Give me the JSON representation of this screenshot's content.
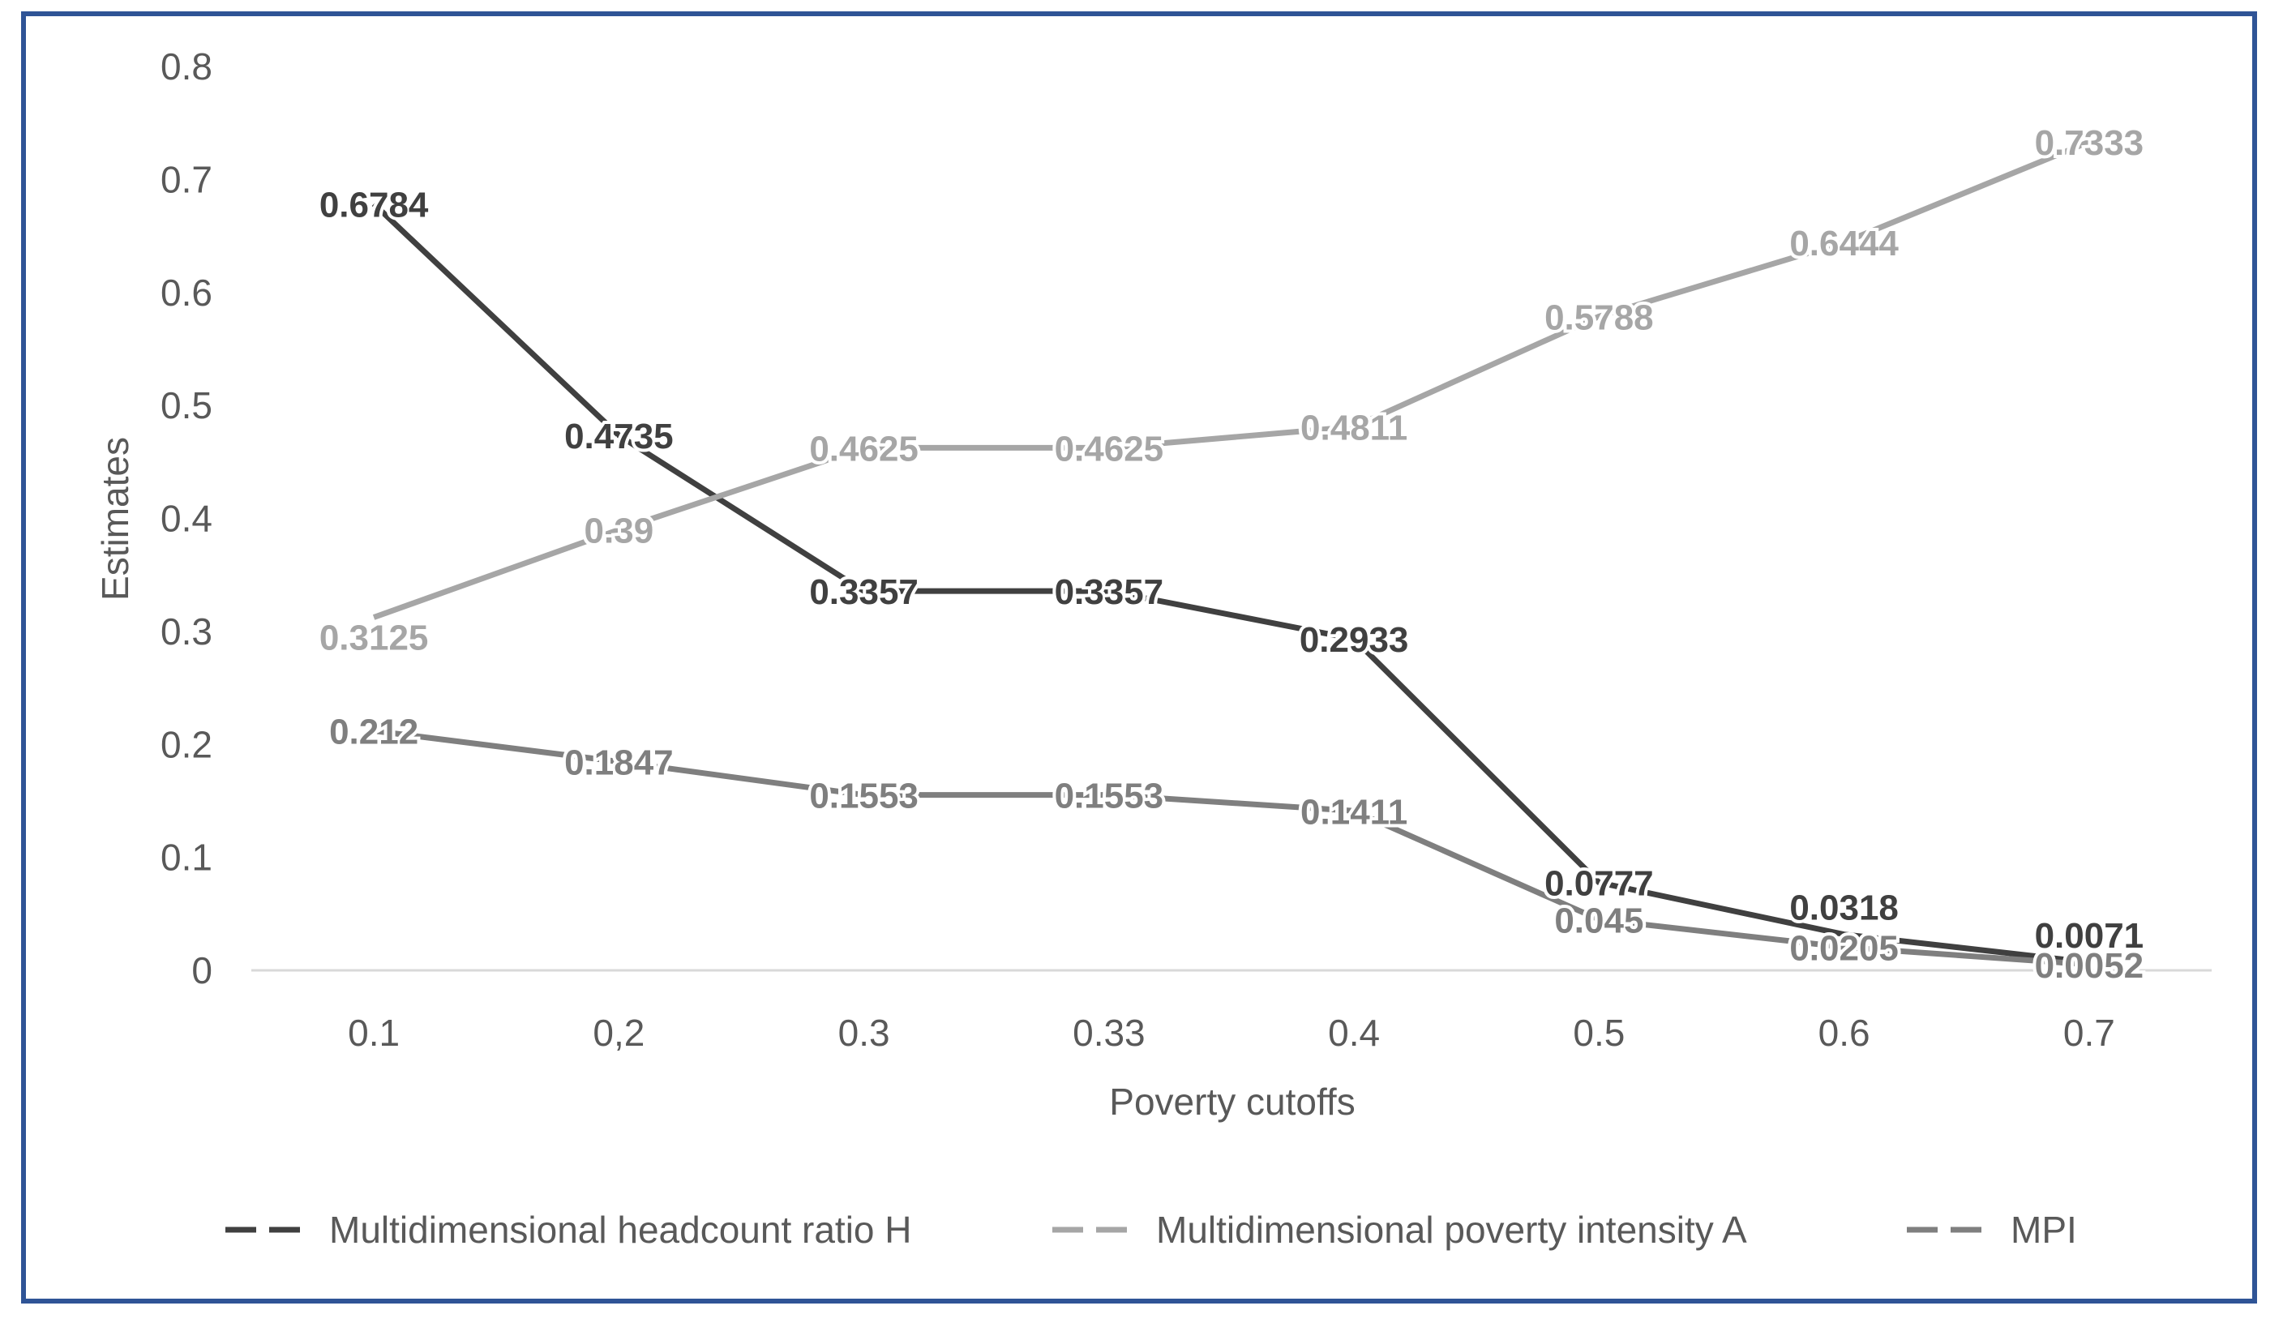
{
  "chart_data": {
    "type": "line",
    "title": "",
    "xlabel": "Poverty cutoffs",
    "ylabel": "Estimates",
    "categories": [
      "0.1",
      "0,2",
      "0.3",
      "0.33",
      "0.4",
      "0.5",
      "0.6",
      "0.7"
    ],
    "ylim": [
      0,
      0.8
    ],
    "yticks": [
      "0",
      "0.1",
      "0.2",
      "0.3",
      "0.4",
      "0.5",
      "0.6",
      "0.7",
      "0.8"
    ],
    "grid": false,
    "legend_position": "bottom",
    "series": [
      {
        "name": "Multidimensional headcount ratio H",
        "color": "#404040",
        "values": [
          0.6784,
          0.4735,
          0.3357,
          0.3357,
          0.2933,
          0.0777,
          0.0318,
          0.0071
        ],
        "labels": [
          "0.6784",
          "0.4735",
          "0.3357",
          "0.3357",
          "0.2933",
          "0.0777",
          "0.0318",
          "0.0071"
        ]
      },
      {
        "name": "Multidimensional poverty intensity A",
        "color": "#a6a6a6",
        "values": [
          0.3125,
          0.39,
          0.4625,
          0.4625,
          0.4811,
          0.5788,
          0.6444,
          0.7333
        ],
        "labels": [
          "0.3125",
          "0.39",
          "0.4625",
          "0.4625",
          "0.4811",
          "0.5788",
          "0.6444",
          "0.7333"
        ]
      },
      {
        "name": "MPI",
        "color": "#7f7f7f",
        "values": [
          0.212,
          0.1847,
          0.1553,
          0.1553,
          0.1411,
          0.045,
          0.0205,
          0.0052
        ],
        "labels": [
          "0.212",
          "0.1847",
          "0.1553",
          "0.1553",
          "0.1411",
          "0.045",
          "0.0205",
          "0.0052"
        ]
      }
    ]
  }
}
